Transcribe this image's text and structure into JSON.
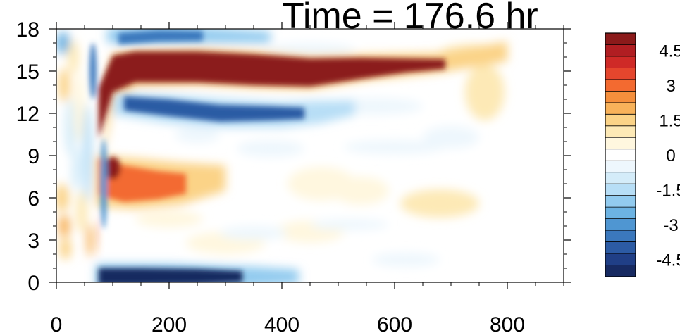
{
  "chart_data": {
    "type": "heatmap",
    "title": "Time = 176.6 hr",
    "xlabel": "",
    "ylabel": "",
    "xlim": [
      0,
      900
    ],
    "ylim": [
      0,
      18
    ],
    "x_ticks": [
      "0",
      "200",
      "400",
      "600",
      "800"
    ],
    "y_ticks": [
      "0",
      "3",
      "6",
      "9",
      "12",
      "15",
      "18"
    ],
    "colorbar": {
      "range": [
        -5.5,
        5.5
      ],
      "step": 0.5,
      "labels": [
        "4.5",
        "3",
        "1.5",
        "0",
        "-1.5",
        "-3",
        "-4.5"
      ],
      "colors": [
        "#8b1a1a",
        "#b11e22",
        "#cf2a27",
        "#e5462d",
        "#f36a30",
        "#f58f3c",
        "#f8b25a",
        "#fbd387",
        "#fde9b6",
        "#fff7df",
        "#ffffff",
        "#eef7fd",
        "#d4ecf9",
        "#b7def6",
        "#92cbef",
        "#6cb3e3",
        "#4f96d2",
        "#3b78bd",
        "#2c5ba4",
        "#203f86",
        "#172a61"
      ]
    },
    "features": [
      {
        "name": "upper positive band",
        "sign": "positive",
        "x": [
          85,
          800
        ],
        "y": [
          13.9,
          16.6
        ],
        "max": 5.5
      },
      {
        "name": "upper-mid negative band",
        "sign": "negative",
        "x": [
          110,
          520
        ],
        "y": [
          11.0,
          13.6
        ],
        "min": -4.5
      },
      {
        "name": "mid positive patch",
        "sign": "positive",
        "x": [
          70,
          320
        ],
        "y": [
          5.0,
          9.0
        ],
        "max": 4.5
      },
      {
        "name": "bottom negative strip",
        "sign": "negative",
        "x": [
          70,
          420
        ],
        "y": [
          0,
          1.2
        ],
        "min": -5.0
      },
      {
        "name": "top negative strip",
        "sign": "negative",
        "x": [
          80,
          360
        ],
        "y": [
          16.5,
          18
        ],
        "min": -4.0
      }
    ]
  }
}
